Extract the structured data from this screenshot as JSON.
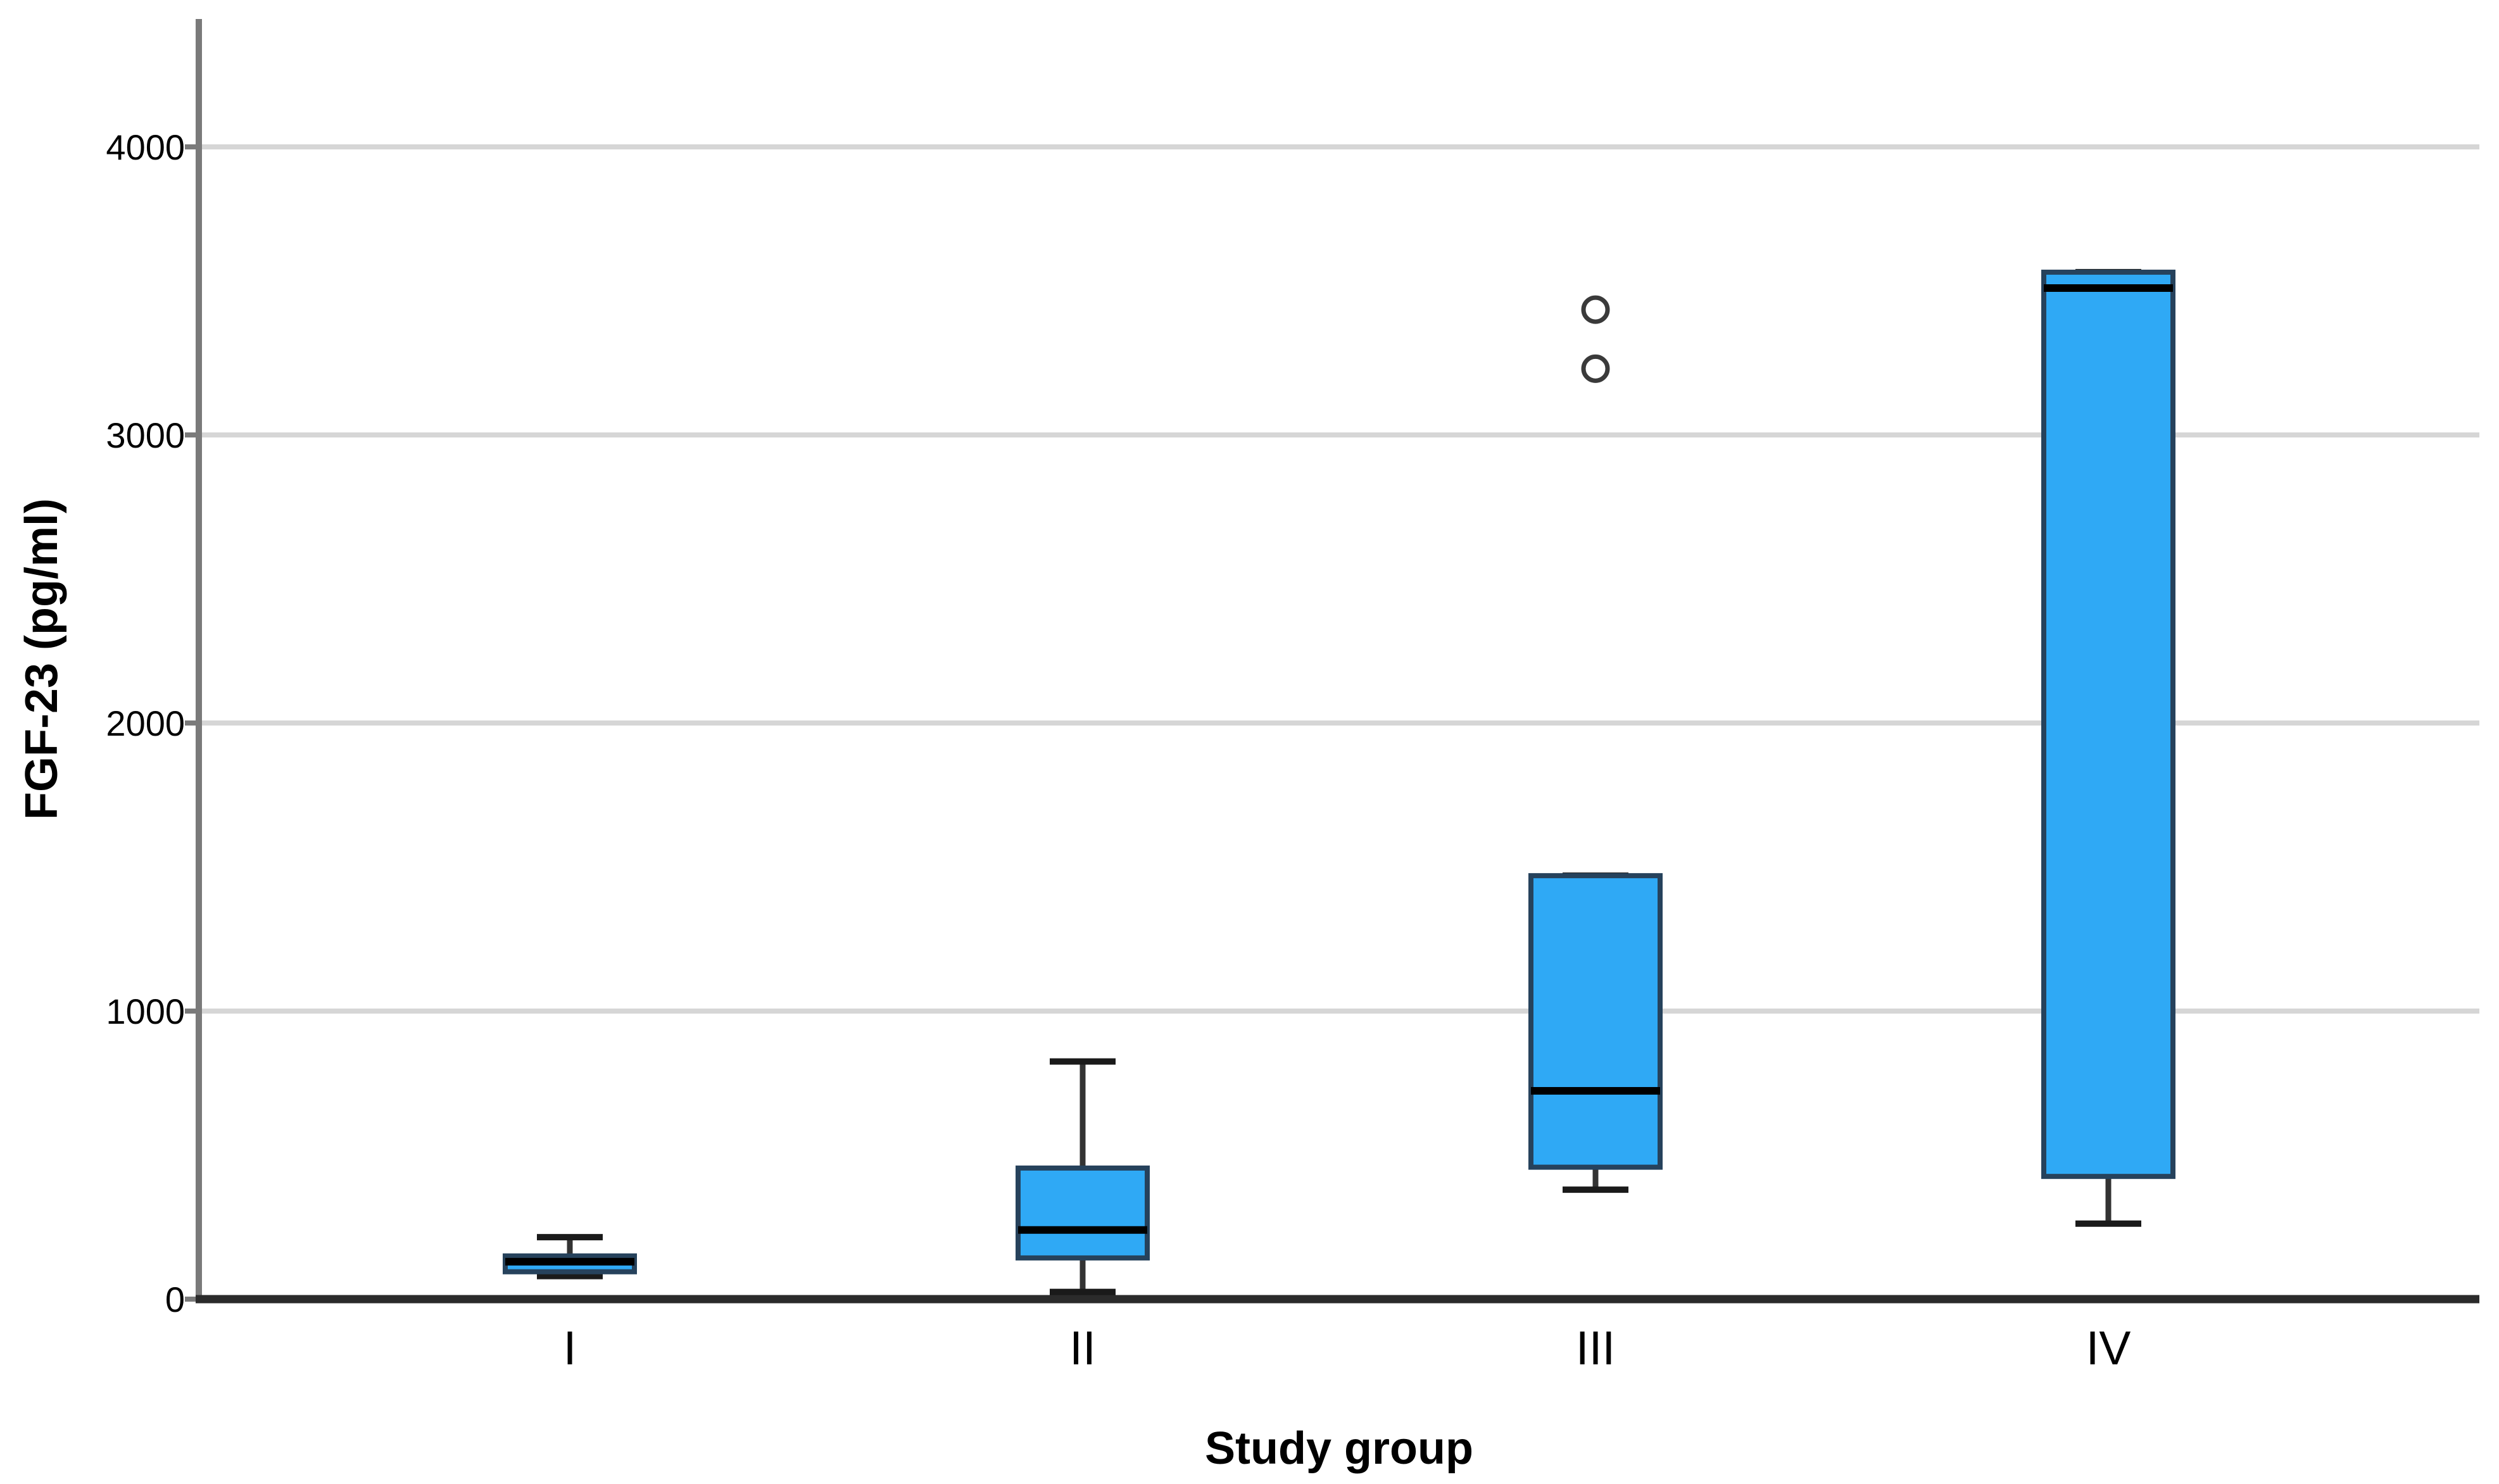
{
  "chart_data": {
    "type": "boxplot",
    "title": "",
    "xlabel": "Study group",
    "ylabel": "FGF-23 (pg/ml)",
    "categories": [
      "I",
      "II",
      "III",
      "IV"
    ],
    "y_ticks": [
      0,
      1000,
      2000,
      3000,
      4000
    ],
    "y_tick_labels": [
      "0",
      "1000",
      "2000",
      "3000",
      "4000"
    ],
    "ylim": [
      0,
      4440
    ],
    "grid": "horizontal-light-gray",
    "legend": "none",
    "series": [
      {
        "group": "I",
        "min": 80,
        "q1": 95,
        "median": 130,
        "q3": 150,
        "max": 215,
        "outliers": []
      },
      {
        "group": "II",
        "min": 25,
        "q1": 143,
        "median": 240,
        "q3": 455,
        "max": 825,
        "outliers": []
      },
      {
        "group": "III",
        "min": 380,
        "q1": 458,
        "median": 723,
        "q3": 1470,
        "max": 1470,
        "outliers": [
          3230,
          3435
        ]
      },
      {
        "group": "IV",
        "min": 262,
        "q1": 426,
        "median": 3510,
        "q3": 3565,
        "max": 3565,
        "outliers": []
      }
    ],
    "colors": {
      "box_fill": "#2FA9F5",
      "box_border": "#26425C",
      "median": "#000000",
      "whisker": "#333333",
      "whisker_cap": "#1A1A1A",
      "gridline": "#D6D6D6",
      "axis": "#7A7A7A",
      "baseline": "#2B2B2B",
      "outlier": "#3A3A3A",
      "text": "#000000"
    }
  }
}
